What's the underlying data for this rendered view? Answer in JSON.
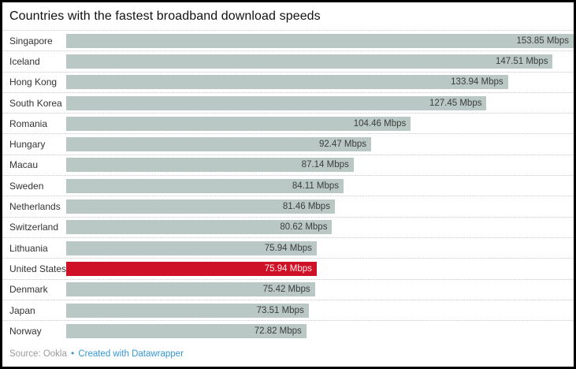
{
  "title": "Countries with the fastest broadband download speeds",
  "footer": {
    "source_label": "Source: Ookla",
    "separator": "•",
    "credit_link": "Created with Datawrapper"
  },
  "colors": {
    "bar": "#b9c8c4",
    "highlight_bar": "#ce1126",
    "value_text": "#3d3d3d",
    "highlight_value_text": "#ffe9ec",
    "link": "#3597d3",
    "border": "#000000"
  },
  "chart_data": {
    "type": "bar",
    "orientation": "horizontal",
    "title": "Countries with the fastest broadband download speeds",
    "unit": "Mbps",
    "xlim": [
      0,
      153.85
    ],
    "grid": false,
    "legend": false,
    "categories": [
      "Singapore",
      "Iceland",
      "Hong Kong",
      "South Korea",
      "Romania",
      "Hungary",
      "Macau",
      "Sweden",
      "Netherlands",
      "Switzerland",
      "Lithuania",
      "United States",
      "Denmark",
      "Japan",
      "Norway"
    ],
    "values": [
      153.85,
      147.51,
      133.94,
      127.45,
      104.46,
      92.47,
      87.14,
      84.11,
      81.46,
      80.62,
      75.94,
      75.94,
      75.42,
      73.51,
      72.82
    ],
    "value_labels": [
      "153.85 Mbps",
      "147.51 Mbps",
      "133.94 Mbps",
      "127.45 Mbps",
      "104.46 Mbps",
      "92.47 Mbps",
      "87.14 Mbps",
      "84.11 Mbps",
      "81.46 Mbps",
      "80.62 Mbps",
      "75.94 Mbps",
      "75.94 Mbps",
      "75.42 Mbps",
      "73.51 Mbps",
      "72.82 Mbps"
    ],
    "highlight_index": 11,
    "highlight_category": "United States"
  }
}
